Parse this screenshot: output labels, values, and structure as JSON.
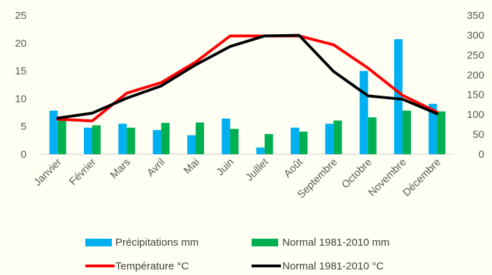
{
  "chart_data": {
    "type": "bar",
    "categories": [
      "Janvier",
      "Février",
      "Mars",
      "Avril",
      "Mai",
      "Juin",
      "Juillet",
      "Août",
      "Septembre",
      "Octobre",
      "Novembre",
      "Décembre"
    ],
    "y_left": {
      "ylim": [
        0,
        25
      ],
      "ticks": [
        "0",
        "5",
        "10",
        "15",
        "20",
        "25"
      ]
    },
    "y_right": {
      "ylim": [
        0,
        350
      ],
      "ticks": [
        "0",
        "50",
        "100",
        "150",
        "200",
        "250",
        "300",
        "350"
      ]
    },
    "grid": false,
    "legend_position": "bottom",
    "series": [
      {
        "name": "Précipitations mm",
        "kind": "bar",
        "axis": "right",
        "color": "#00b0f0",
        "values": [
          110,
          67,
          77,
          61,
          48,
          90,
          17,
          67,
          77,
          210,
          290,
          127
        ]
      },
      {
        "name": "Normal 1981-2010 mm",
        "kind": "bar",
        "axis": "right",
        "color": "#00b050",
        "values": [
          95,
          73,
          67,
          79,
          80,
          64,
          51,
          57,
          85,
          93,
          110,
          108
        ]
      },
      {
        "name": "Température °C",
        "kind": "line",
        "axis": "left",
        "color": "#ff0000",
        "values": [
          6.3,
          6.0,
          11.0,
          12.9,
          16.6,
          21.3,
          21.3,
          21.3,
          19.7,
          15.5,
          10.6,
          7.6
        ]
      },
      {
        "name": "Normal 1981-2010 °C",
        "kind": "line",
        "axis": "left",
        "color": "#000000",
        "values": [
          6.5,
          7.4,
          10.1,
          12.3,
          16.1,
          19.4,
          21.3,
          21.4,
          14.9,
          10.5,
          9.9,
          7.3
        ]
      }
    ]
  }
}
